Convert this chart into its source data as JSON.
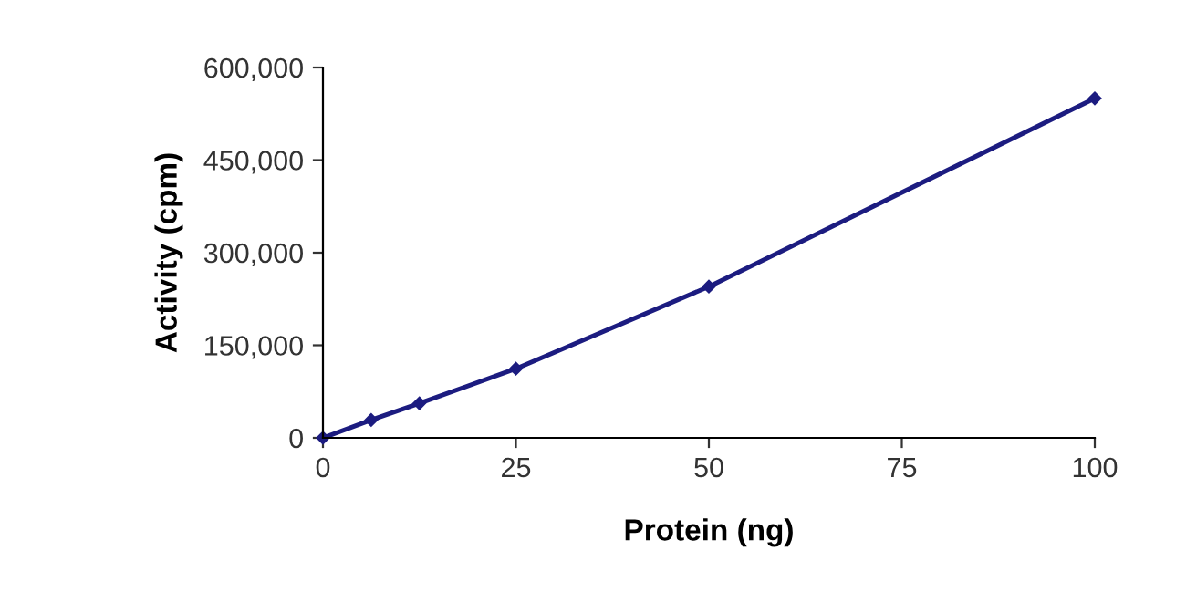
{
  "chart_data": {
    "type": "line",
    "xlabel": "Protein (ng)",
    "ylabel": "Activity (cpm)",
    "x": [
      0,
      6.25,
      12.5,
      25,
      50,
      100
    ],
    "series": [
      {
        "color": "#1c1c80",
        "values": [
          0,
          29000,
          56000,
          112000,
          245000,
          550000
        ]
      }
    ],
    "xlim": [
      0,
      100
    ],
    "xticks": [
      0,
      25,
      50,
      75,
      100
    ],
    "ylim": [
      0,
      600000
    ],
    "yticks": [
      {
        "value": 0,
        "label": "0"
      },
      {
        "value": 150000,
        "label": "150,000"
      },
      {
        "value": 300000,
        "label": "300,000"
      },
      {
        "value": 450000,
        "label": "450,000"
      },
      {
        "value": 600000,
        "label": "600,000"
      }
    ],
    "grid": false,
    "legend": false,
    "marker": "diamond",
    "line_style": "solid"
  }
}
